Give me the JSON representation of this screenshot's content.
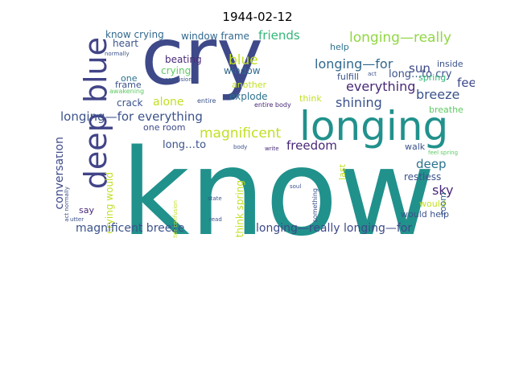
{
  "title": "1944-02-12",
  "words": [
    {
      "text": "know",
      "color": "#21918c",
      "big": true
    },
    {
      "text": "cry",
      "color": "#3e4989"
    },
    {
      "text": "longing",
      "color": "#21918c"
    },
    {
      "text": "deep blue",
      "color": "#414487"
    },
    {
      "text": "know crying",
      "color": "#31688e"
    },
    {
      "text": "heart",
      "color": "#3b528b"
    },
    {
      "text": "window frame",
      "color": "#31688e"
    },
    {
      "text": "friends",
      "color": "#35b779"
    },
    {
      "text": "longing—really",
      "color": "#90d743"
    },
    {
      "text": "blue",
      "color": "#c2df23"
    },
    {
      "text": "longing—for",
      "color": "#31688e"
    },
    {
      "text": "long…to cry",
      "color": "#3b528b"
    },
    {
      "text": "sun",
      "color": "#3e4989"
    },
    {
      "text": "beating",
      "color": "#482878"
    },
    {
      "text": "crying",
      "color": "#5ec962"
    },
    {
      "text": "window",
      "color": "#31688e"
    },
    {
      "text": "inside",
      "color": "#3b528b"
    },
    {
      "text": "help",
      "color": "#2c728e"
    },
    {
      "text": "fulfill",
      "color": "#3b528b"
    },
    {
      "text": "spring",
      "color": "#35b779"
    },
    {
      "text": "one",
      "color": "#2c728e"
    },
    {
      "text": "frame",
      "color": "#3b528b"
    },
    {
      "text": "awakening",
      "color": "#5ec962"
    },
    {
      "text": "another",
      "color": "#c2df23"
    },
    {
      "text": "everything",
      "color": "#482878"
    },
    {
      "text": "feel",
      "color": "#3e4989"
    },
    {
      "text": "breeze",
      "color": "#3b528b"
    },
    {
      "text": "crack",
      "color": "#3b528b"
    },
    {
      "text": "alone",
      "color": "#c2df23"
    },
    {
      "text": "explode",
      "color": "#2c728e"
    },
    {
      "text": "shining",
      "color": "#3b528b"
    },
    {
      "text": "think",
      "color": "#c2df23"
    },
    {
      "text": "breathe",
      "color": "#5ec962"
    },
    {
      "text": "entire",
      "color": "#3b528b"
    },
    {
      "text": "entire body",
      "color": "#482878"
    },
    {
      "text": "longing—for everything",
      "color": "#3b528b"
    },
    {
      "text": "one room",
      "color": "#3e4989"
    },
    {
      "text": "magnificent",
      "color": "#c2df23"
    },
    {
      "text": "conversation",
      "color": "#3e4989"
    },
    {
      "text": "long…to",
      "color": "#3b528b"
    },
    {
      "text": "freedom",
      "color": "#482878"
    },
    {
      "text": "walk",
      "color": "#3b528b"
    },
    {
      "text": "deep",
      "color": "#2c728e"
    },
    {
      "text": "restless",
      "color": "#3b528b"
    },
    {
      "text": "sky",
      "color": "#482878"
    },
    {
      "text": "would",
      "color": "#c2df23"
    },
    {
      "text": "room",
      "color": "#31688e"
    },
    {
      "text": "crying would",
      "color": "#c2df23"
    },
    {
      "text": "say",
      "color": "#482878"
    },
    {
      "text": "would help",
      "color": "#3b528b"
    },
    {
      "text": "magnificent breeze",
      "color": "#3b528b"
    },
    {
      "text": "longing—really longing—for",
      "color": "#3e4989"
    },
    {
      "text": "think spring",
      "color": "#c2df23"
    },
    {
      "text": "heart beating",
      "color": "#3b528b"
    },
    {
      "text": "spring awakening",
      "color": "#31688e"
    },
    {
      "text": "act normally",
      "color": "#3b528b"
    },
    {
      "text": "normally",
      "color": "#3b528b"
    },
    {
      "text": "confusion",
      "color": "#3b528b"
    },
    {
      "text": "act",
      "color": "#3b528b"
    },
    {
      "text": "force",
      "color": "#3b528b"
    },
    {
      "text": "body",
      "color": "#3b528b"
    },
    {
      "text": "write",
      "color": "#482878"
    },
    {
      "text": "feel spring",
      "color": "#5ec962"
    },
    {
      "text": "last",
      "color": "#c2df23"
    },
    {
      "text": "something",
      "color": "#3b528b"
    },
    {
      "text": "soul",
      "color": "#3b528b"
    },
    {
      "text": "state",
      "color": "#3b528b"
    },
    {
      "text": "utter confusion",
      "color": "#c2df23"
    },
    {
      "text": "utter",
      "color": "#3b528b"
    },
    {
      "text": "read",
      "color": "#3b528b"
    }
  ]
}
